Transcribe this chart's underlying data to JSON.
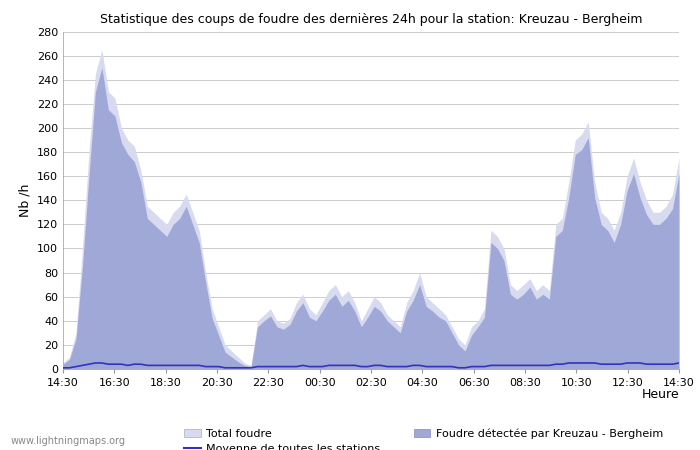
{
  "title": "Statistique des coups de foudre des dernières 24h pour la station: Kreuzau - Bergheim",
  "ylabel": "Nb /h",
  "xlabel": "Heure",
  "watermark": "www.lightningmaps.org",
  "ylim": [
    0,
    280
  ],
  "yticks": [
    0,
    20,
    40,
    60,
    80,
    100,
    120,
    140,
    160,
    180,
    200,
    220,
    240,
    260,
    280
  ],
  "xtick_labels": [
    "14:30",
    "16:30",
    "18:30",
    "20:30",
    "22:30",
    "00:30",
    "02:30",
    "04:30",
    "06:30",
    "08:30",
    "10:30",
    "12:30",
    "14:30"
  ],
  "legend_total": "Total foudre",
  "legend_station": "Foudre détectée par Kreuzau - Bergheim",
  "legend_moyenne": "Moyenne de toutes les stations",
  "color_total": "#d8daef",
  "color_station": "#a0a8d8",
  "color_moyenne": "#3333bb",
  "background_color": "#ffffff",
  "grid_color": "#cccccc",
  "x_total": [
    0,
    1,
    2,
    3,
    4,
    5,
    6,
    7,
    8,
    9,
    10,
    11,
    12,
    13,
    14,
    15,
    16,
    17,
    18,
    19,
    20,
    21,
    22,
    23,
    24,
    25,
    26,
    27,
    28,
    29,
    30,
    31,
    32,
    33,
    34,
    35,
    36,
    37,
    38,
    39,
    40,
    41,
    42,
    43,
    44,
    45,
    46,
    47,
    48,
    49,
    50,
    51,
    52,
    53,
    54,
    55,
    56,
    57,
    58,
    59,
    60,
    61,
    62,
    63,
    64,
    65,
    66,
    67,
    68,
    69,
    70,
    71,
    72,
    73,
    74,
    75,
    76,
    77,
    78,
    79,
    80,
    81,
    82,
    83,
    84,
    85,
    86,
    87,
    88,
    89,
    90,
    91,
    92,
    93,
    94,
    95
  ],
  "y_total": [
    5,
    10,
    30,
    100,
    180,
    245,
    265,
    230,
    225,
    200,
    190,
    185,
    165,
    135,
    130,
    125,
    120,
    130,
    135,
    145,
    130,
    115,
    80,
    50,
    35,
    20,
    15,
    10,
    5,
    3,
    40,
    45,
    50,
    40,
    38,
    42,
    55,
    62,
    50,
    45,
    55,
    65,
    70,
    60,
    65,
    55,
    40,
    50,
    60,
    55,
    45,
    40,
    35,
    55,
    65,
    80,
    60,
    55,
    50,
    45,
    35,
    25,
    20,
    35,
    40,
    50,
    115,
    110,
    100,
    70,
    65,
    70,
    75,
    65,
    70,
    65,
    120,
    125,
    155,
    190,
    195,
    205,
    155,
    130,
    125,
    115,
    130,
    160,
    175,
    155,
    140,
    130,
    130,
    135,
    145,
    175
  ],
  "y_station": [
    4,
    8,
    25,
    85,
    160,
    230,
    250,
    215,
    210,
    188,
    178,
    172,
    155,
    125,
    120,
    115,
    110,
    120,
    125,
    135,
    120,
    105,
    72,
    42,
    28,
    14,
    10,
    6,
    3,
    2,
    35,
    40,
    44,
    35,
    33,
    37,
    48,
    55,
    43,
    40,
    48,
    57,
    62,
    52,
    57,
    48,
    35,
    43,
    52,
    48,
    40,
    35,
    30,
    48,
    57,
    70,
    52,
    48,
    43,
    40,
    30,
    20,
    15,
    28,
    35,
    43,
    105,
    100,
    90,
    62,
    58,
    62,
    68,
    58,
    62,
    58,
    110,
    115,
    142,
    178,
    182,
    192,
    142,
    120,
    115,
    105,
    120,
    148,
    162,
    142,
    128,
    120,
    120,
    125,
    133,
    162
  ],
  "y_moyenne": [
    1,
    1,
    2,
    3,
    4,
    5,
    5,
    4,
    4,
    4,
    3,
    4,
    4,
    3,
    3,
    3,
    3,
    3,
    3,
    3,
    3,
    3,
    2,
    2,
    2,
    1,
    1,
    1,
    1,
    1,
    2,
    2,
    2,
    2,
    2,
    2,
    2,
    3,
    2,
    2,
    2,
    3,
    3,
    3,
    3,
    3,
    2,
    2,
    3,
    3,
    2,
    2,
    2,
    2,
    3,
    3,
    2,
    2,
    2,
    2,
    2,
    1,
    1,
    2,
    2,
    2,
    3,
    3,
    3,
    3,
    3,
    3,
    3,
    3,
    3,
    3,
    4,
    4,
    5,
    5,
    5,
    5,
    5,
    4,
    4,
    4,
    4,
    5,
    5,
    5,
    4,
    4,
    4,
    4,
    4,
    5
  ]
}
